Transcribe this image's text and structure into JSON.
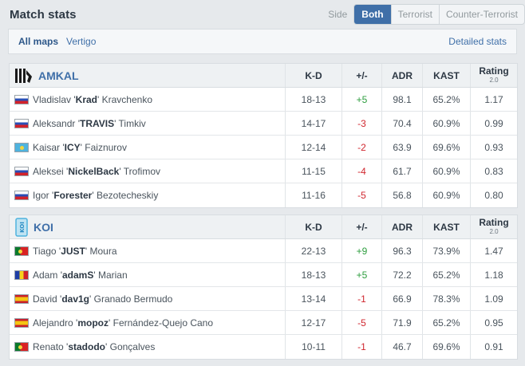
{
  "header": {
    "title": "Match stats",
    "side_label": "Side",
    "tabs": [
      "Both",
      "Terrorist",
      "Counter-Terrorist"
    ]
  },
  "filter": {
    "maps": [
      "All maps",
      "Vertigo"
    ],
    "detailed": "Detailed stats"
  },
  "columns": {
    "kd": "K-D",
    "pm": "+/-",
    "adr": "ADR",
    "kast": "KAST",
    "rating": "Rating",
    "rating_version": "2.0"
  },
  "teams": [
    {
      "name": "AMKAL",
      "players": [
        {
          "first": "Vladislav",
          "nick": "Krad",
          "last": "Kravchenko",
          "flag": "ru",
          "kd": "18-13",
          "pm": "+5",
          "adr": "98.1",
          "kast": "65.2%",
          "rating": "1.17"
        },
        {
          "first": "Aleksandr",
          "nick": "TRAVIS",
          "last": "Timkiv",
          "flag": "ru",
          "kd": "14-17",
          "pm": "-3",
          "adr": "70.4",
          "kast": "60.9%",
          "rating": "0.99"
        },
        {
          "first": "Kaisar",
          "nick": "ICY",
          "last": "Faiznurov",
          "flag": "kz",
          "kd": "12-14",
          "pm": "-2",
          "adr": "63.9",
          "kast": "69.6%",
          "rating": "0.93"
        },
        {
          "first": "Aleksei",
          "nick": "NickelBack",
          "last": "Trofimov",
          "flag": "ru",
          "kd": "11-15",
          "pm": "-4",
          "adr": "61.7",
          "kast": "60.9%",
          "rating": "0.83"
        },
        {
          "first": "Igor",
          "nick": "Forester",
          "last": "Bezotecheskiy",
          "flag": "ru",
          "kd": "11-16",
          "pm": "-5",
          "adr": "56.8",
          "kast": "60.9%",
          "rating": "0.80"
        }
      ]
    },
    {
      "name": "KOI",
      "players": [
        {
          "first": "Tiago",
          "nick": "JUST",
          "last": "Moura",
          "flag": "pt",
          "kd": "22-13",
          "pm": "+9",
          "adr": "96.3",
          "kast": "73.9%",
          "rating": "1.47"
        },
        {
          "first": "Adam",
          "nick": "adamS",
          "last": "Marian",
          "flag": "ro",
          "kd": "18-13",
          "pm": "+5",
          "adr": "72.2",
          "kast": "65.2%",
          "rating": "1.18"
        },
        {
          "first": "David",
          "nick": "dav1g",
          "last": "Granado Bermudo",
          "flag": "es",
          "kd": "13-14",
          "pm": "-1",
          "adr": "66.9",
          "kast": "78.3%",
          "rating": "1.09"
        },
        {
          "first": "Alejandro",
          "nick": "mopoz",
          "last": "Fernández-Quejo Cano",
          "flag": "es",
          "kd": "12-17",
          "pm": "-5",
          "adr": "71.9",
          "kast": "65.2%",
          "rating": "0.95"
        },
        {
          "first": "Renato",
          "nick": "stadodo",
          "last": "Gonçalves",
          "flag": "pt",
          "kd": "10-11",
          "pm": "-1",
          "adr": "46.7",
          "kast": "69.6%",
          "rating": "0.91"
        }
      ]
    }
  ]
}
